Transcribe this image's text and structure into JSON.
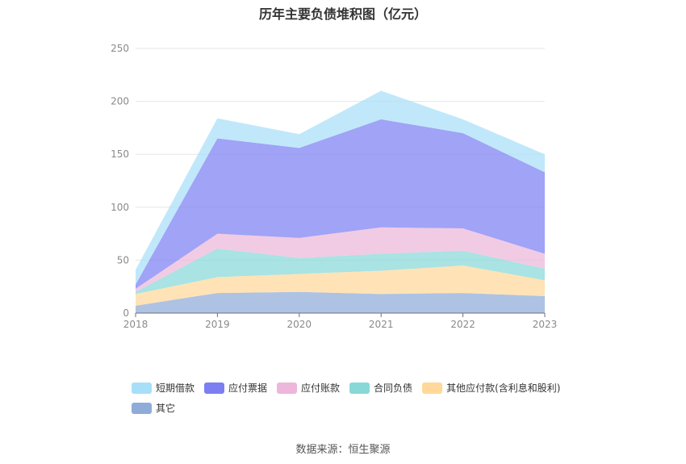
{
  "title": "历年主要负债堆积图（亿元）",
  "source": "数据来源：恒生聚源",
  "chart_data": {
    "type": "area",
    "stacked": true,
    "title": "历年主要负债堆积图（亿元）",
    "unit": "亿元",
    "x": [
      "2018",
      "2019",
      "2020",
      "2021",
      "2022",
      "2023"
    ],
    "ylim": [
      0,
      250
    ],
    "yticks": [
      0,
      50,
      100,
      150,
      200,
      250
    ],
    "grid": true,
    "legend_position": "bottom",
    "series": [
      {
        "name": "其它",
        "color": "#8fabd8",
        "values": [
          7,
          19,
          20,
          18,
          19,
          16
        ]
      },
      {
        "name": "其他应付款(含利息和股利)",
        "color": "#ffd89a",
        "values": [
          11,
          15,
          17,
          22,
          26,
          15
        ]
      },
      {
        "name": "合同负债",
        "color": "#88d8d8",
        "values": [
          2,
          27,
          15,
          16,
          14,
          11
        ]
      },
      {
        "name": "应付账款",
        "color": "#ecb7da",
        "values": [
          3,
          14,
          19,
          25,
          21,
          14
        ]
      },
      {
        "name": "应付票据",
        "color": "#7b7ff2",
        "values": [
          4,
          90,
          85,
          102,
          90,
          77
        ]
      },
      {
        "name": "短期借款",
        "color": "#a8dff8",
        "values": [
          14,
          19,
          13,
          27,
          13,
          17
        ]
      }
    ]
  },
  "legend": [
    {
      "label": "短期借款",
      "color": "#a8dff8"
    },
    {
      "label": "应付票据",
      "color": "#7b7ff2"
    },
    {
      "label": "应付账款",
      "color": "#ecb7da"
    },
    {
      "label": "合同负债",
      "color": "#88d8d8"
    },
    {
      "label": "其他应付款(含利息和股利)",
      "color": "#ffd89a"
    },
    {
      "label": "其它",
      "color": "#8fabd8"
    }
  ]
}
